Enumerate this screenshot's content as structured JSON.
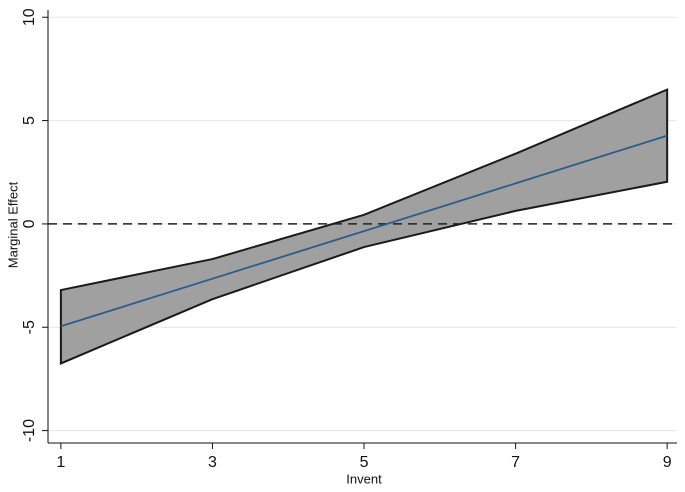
{
  "chart_data": {
    "type": "ci_band_line",
    "x_label": "Invent",
    "y_label": "Marginal Effect",
    "x": [
      1,
      3,
      5,
      7,
      9
    ],
    "values": [
      -4.95,
      -2.65,
      -0.35,
      1.96,
      4.27
    ],
    "ci_upper": [
      -3.2,
      -1.7,
      0.44,
      3.4,
      6.5
    ],
    "ci_lower": [
      -6.75,
      -3.64,
      -1.12,
      0.63,
      2.04
    ],
    "line_color": "#2e5b8a",
    "band_color": "#a0a0a0",
    "band_edge_color": "#1a1a1a",
    "reference_line": 0,
    "xlim": [
      0.83,
      9.13
    ],
    "ylim": [
      -10.6,
      10.35
    ],
    "xticks": [
      1,
      3,
      5,
      7,
      9
    ],
    "yticks": [
      -10,
      -5,
      0,
      5,
      10
    ],
    "grid": true
  }
}
